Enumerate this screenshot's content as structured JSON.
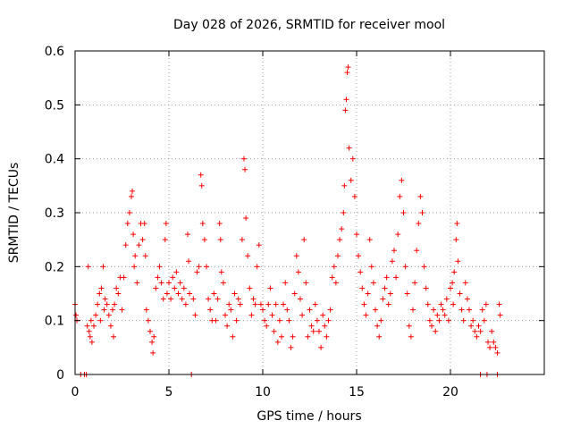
{
  "colors": {
    "series": "#ff0000",
    "axis": "#000000",
    "grid": "#a0a0a0",
    "background": "#ffffff"
  },
  "chart_data": {
    "type": "scatter",
    "title": "Day 028 of 2026, SRMTID for receiver mool",
    "xlabel": "GPS time / hours",
    "ylabel": "SRMTID / TECUs",
    "xlim": [
      0,
      25
    ],
    "ylim": [
      0,
      0.6
    ],
    "grid": true,
    "x_ticks": [
      0,
      5,
      10,
      15,
      20
    ],
    "x_tick_labels": [
      "0",
      "5",
      "10",
      "15",
      "20"
    ],
    "y_ticks": [
      0,
      0.1,
      0.2,
      0.3,
      0.4,
      0.5,
      0.6
    ],
    "y_tick_labels": [
      "0",
      "0.1",
      "0.2",
      "0.3",
      "0.4",
      "0.5",
      "0.6"
    ],
    "marker": "plus",
    "series": [
      {
        "name": "SRMTID",
        "points": [
          [
            0.0,
            0.13
          ],
          [
            0.05,
            0.11
          ],
          [
            0.1,
            0.1
          ],
          [
            0.3,
            0.0
          ],
          [
            0.5,
            0.0
          ],
          [
            0.6,
            0.0
          ],
          [
            0.65,
            0.09
          ],
          [
            0.7,
            0.2
          ],
          [
            0.75,
            0.08
          ],
          [
            0.8,
            0.07
          ],
          [
            0.85,
            0.1
          ],
          [
            0.9,
            0.06
          ],
          [
            1.0,
            0.09
          ],
          [
            1.1,
            0.11
          ],
          [
            1.2,
            0.13
          ],
          [
            1.3,
            0.15
          ],
          [
            1.35,
            0.1
          ],
          [
            1.4,
            0.16
          ],
          [
            1.5,
            0.2
          ],
          [
            1.55,
            0.12
          ],
          [
            1.6,
            0.14
          ],
          [
            1.7,
            0.13
          ],
          [
            1.8,
            0.11
          ],
          [
            1.9,
            0.09
          ],
          [
            2.0,
            0.12
          ],
          [
            2.05,
            0.07
          ],
          [
            2.1,
            0.13
          ],
          [
            2.2,
            0.16
          ],
          [
            2.3,
            0.15
          ],
          [
            2.4,
            0.18
          ],
          [
            2.5,
            0.12
          ],
          [
            2.6,
            0.18
          ],
          [
            2.7,
            0.24
          ],
          [
            2.8,
            0.28
          ],
          [
            2.9,
            0.3
          ],
          [
            3.0,
            0.33
          ],
          [
            3.05,
            0.34
          ],
          [
            3.1,
            0.26
          ],
          [
            3.15,
            0.2
          ],
          [
            3.2,
            0.22
          ],
          [
            3.3,
            0.17
          ],
          [
            3.4,
            0.24
          ],
          [
            3.5,
            0.28
          ],
          [
            3.6,
            0.25
          ],
          [
            3.7,
            0.28
          ],
          [
            3.75,
            0.22
          ],
          [
            3.8,
            0.12
          ],
          [
            3.9,
            0.1
          ],
          [
            4.0,
            0.08
          ],
          [
            4.1,
            0.06
          ],
          [
            4.15,
            0.04
          ],
          [
            4.2,
            0.07
          ],
          [
            4.3,
            0.16
          ],
          [
            4.4,
            0.18
          ],
          [
            4.5,
            0.2
          ],
          [
            4.6,
            0.17
          ],
          [
            4.7,
            0.14
          ],
          [
            4.8,
            0.25
          ],
          [
            4.85,
            0.28
          ],
          [
            4.9,
            0.15
          ],
          [
            5.0,
            0.17
          ],
          [
            5.1,
            0.14
          ],
          [
            5.2,
            0.18
          ],
          [
            5.3,
            0.16
          ],
          [
            5.4,
            0.19
          ],
          [
            5.5,
            0.15
          ],
          [
            5.6,
            0.17
          ],
          [
            5.7,
            0.14
          ],
          [
            5.8,
            0.16
          ],
          [
            5.9,
            0.13
          ],
          [
            6.0,
            0.26
          ],
          [
            6.05,
            0.21
          ],
          [
            6.1,
            0.15
          ],
          [
            6.2,
            0.0
          ],
          [
            6.3,
            0.14
          ],
          [
            6.4,
            0.11
          ],
          [
            6.5,
            0.19
          ],
          [
            6.6,
            0.2
          ],
          [
            6.7,
            0.37
          ],
          [
            6.75,
            0.35
          ],
          [
            6.8,
            0.28
          ],
          [
            6.9,
            0.25
          ],
          [
            7.0,
            0.2
          ],
          [
            7.1,
            0.14
          ],
          [
            7.2,
            0.12
          ],
          [
            7.3,
            0.1
          ],
          [
            7.4,
            0.15
          ],
          [
            7.5,
            0.1
          ],
          [
            7.6,
            0.14
          ],
          [
            7.7,
            0.28
          ],
          [
            7.75,
            0.25
          ],
          [
            7.8,
            0.19
          ],
          [
            7.9,
            0.17
          ],
          [
            8.0,
            0.11
          ],
          [
            8.1,
            0.09
          ],
          [
            8.2,
            0.13
          ],
          [
            8.3,
            0.12
          ],
          [
            8.4,
            0.07
          ],
          [
            8.5,
            0.15
          ],
          [
            8.6,
            0.1
          ],
          [
            8.7,
            0.14
          ],
          [
            8.8,
            0.13
          ],
          [
            8.9,
            0.25
          ],
          [
            9.0,
            0.4
          ],
          [
            9.05,
            0.38
          ],
          [
            9.1,
            0.29
          ],
          [
            9.2,
            0.22
          ],
          [
            9.3,
            0.16
          ],
          [
            9.4,
            0.11
          ],
          [
            9.5,
            0.14
          ],
          [
            9.6,
            0.13
          ],
          [
            9.7,
            0.2
          ],
          [
            9.8,
            0.24
          ],
          [
            9.9,
            0.13
          ],
          [
            10.0,
            0.12
          ],
          [
            10.1,
            0.1
          ],
          [
            10.2,
            0.09
          ],
          [
            10.3,
            0.13
          ],
          [
            10.4,
            0.16
          ],
          [
            10.5,
            0.11
          ],
          [
            10.6,
            0.08
          ],
          [
            10.7,
            0.13
          ],
          [
            10.8,
            0.06
          ],
          [
            10.9,
            0.1
          ],
          [
            11.0,
            0.07
          ],
          [
            11.1,
            0.13
          ],
          [
            11.2,
            0.17
          ],
          [
            11.3,
            0.12
          ],
          [
            11.4,
            0.1
          ],
          [
            11.5,
            0.05
          ],
          [
            11.6,
            0.07
          ],
          [
            11.7,
            0.15
          ],
          [
            11.8,
            0.22
          ],
          [
            11.9,
            0.19
          ],
          [
            12.0,
            0.14
          ],
          [
            12.1,
            0.11
          ],
          [
            12.2,
            0.25
          ],
          [
            12.3,
            0.17
          ],
          [
            12.4,
            0.07
          ],
          [
            12.5,
            0.12
          ],
          [
            12.6,
            0.09
          ],
          [
            12.7,
            0.08
          ],
          [
            12.8,
            0.13
          ],
          [
            12.9,
            0.1
          ],
          [
            13.0,
            0.08
          ],
          [
            13.1,
            0.05
          ],
          [
            13.2,
            0.11
          ],
          [
            13.3,
            0.09
          ],
          [
            13.4,
            0.07
          ],
          [
            13.5,
            0.1
          ],
          [
            13.6,
            0.12
          ],
          [
            13.7,
            0.18
          ],
          [
            13.8,
            0.2
          ],
          [
            13.9,
            0.17
          ],
          [
            14.0,
            0.22
          ],
          [
            14.1,
            0.25
          ],
          [
            14.2,
            0.27
          ],
          [
            14.3,
            0.3
          ],
          [
            14.35,
            0.35
          ],
          [
            14.4,
            0.49
          ],
          [
            14.45,
            0.51
          ],
          [
            14.5,
            0.56
          ],
          [
            14.55,
            0.57
          ],
          [
            14.6,
            0.42
          ],
          [
            14.7,
            0.36
          ],
          [
            14.8,
            0.4
          ],
          [
            14.9,
            0.33
          ],
          [
            15.0,
            0.26
          ],
          [
            15.1,
            0.22
          ],
          [
            15.2,
            0.19
          ],
          [
            15.3,
            0.16
          ],
          [
            15.4,
            0.13
          ],
          [
            15.5,
            0.11
          ],
          [
            15.6,
            0.15
          ],
          [
            15.7,
            0.25
          ],
          [
            15.8,
            0.2
          ],
          [
            15.9,
            0.17
          ],
          [
            16.0,
            0.12
          ],
          [
            16.1,
            0.09
          ],
          [
            16.2,
            0.07
          ],
          [
            16.3,
            0.1
          ],
          [
            16.4,
            0.14
          ],
          [
            16.5,
            0.16
          ],
          [
            16.6,
            0.18
          ],
          [
            16.7,
            0.13
          ],
          [
            16.8,
            0.15
          ],
          [
            16.9,
            0.21
          ],
          [
            17.0,
            0.23
          ],
          [
            17.1,
            0.18
          ],
          [
            17.2,
            0.26
          ],
          [
            17.3,
            0.33
          ],
          [
            17.4,
            0.36
          ],
          [
            17.5,
            0.3
          ],
          [
            17.6,
            0.2
          ],
          [
            17.7,
            0.15
          ],
          [
            17.8,
            0.09
          ],
          [
            17.9,
            0.07
          ],
          [
            18.0,
            0.12
          ],
          [
            18.1,
            0.17
          ],
          [
            18.2,
            0.23
          ],
          [
            18.3,
            0.28
          ],
          [
            18.4,
            0.33
          ],
          [
            18.5,
            0.3
          ],
          [
            18.6,
            0.2
          ],
          [
            18.7,
            0.16
          ],
          [
            18.8,
            0.13
          ],
          [
            18.9,
            0.1
          ],
          [
            19.0,
            0.09
          ],
          [
            19.1,
            0.12
          ],
          [
            19.2,
            0.08
          ],
          [
            19.3,
            0.11
          ],
          [
            19.4,
            0.1
          ],
          [
            19.5,
            0.13
          ],
          [
            19.6,
            0.12
          ],
          [
            19.7,
            0.11
          ],
          [
            19.8,
            0.14
          ],
          [
            19.9,
            0.1
          ],
          [
            20.0,
            0.16
          ],
          [
            20.1,
            0.17
          ],
          [
            20.15,
            0.13
          ],
          [
            20.2,
            0.19
          ],
          [
            20.3,
            0.25
          ],
          [
            20.35,
            0.28
          ],
          [
            20.4,
            0.21
          ],
          [
            20.5,
            0.15
          ],
          [
            20.6,
            0.12
          ],
          [
            20.7,
            0.1
          ],
          [
            20.8,
            0.17
          ],
          [
            20.9,
            0.14
          ],
          [
            21.0,
            0.12
          ],
          [
            21.1,
            0.09
          ],
          [
            21.2,
            0.1
          ],
          [
            21.3,
            0.08
          ],
          [
            21.4,
            0.07
          ],
          [
            21.5,
            0.09
          ],
          [
            21.6,
            0.08
          ],
          [
            21.7,
            0.12
          ],
          [
            21.8,
            0.1
          ],
          [
            21.9,
            0.13
          ],
          [
            22.0,
            0.06
          ],
          [
            22.1,
            0.05
          ],
          [
            22.2,
            0.08
          ],
          [
            22.3,
            0.06
          ],
          [
            22.4,
            0.05
          ],
          [
            22.5,
            0.04
          ],
          [
            22.6,
            0.13
          ],
          [
            22.65,
            0.11
          ],
          [
            21.6,
            0.0
          ],
          [
            21.95,
            0.0
          ],
          [
            22.5,
            0.0
          ]
        ]
      }
    ]
  }
}
